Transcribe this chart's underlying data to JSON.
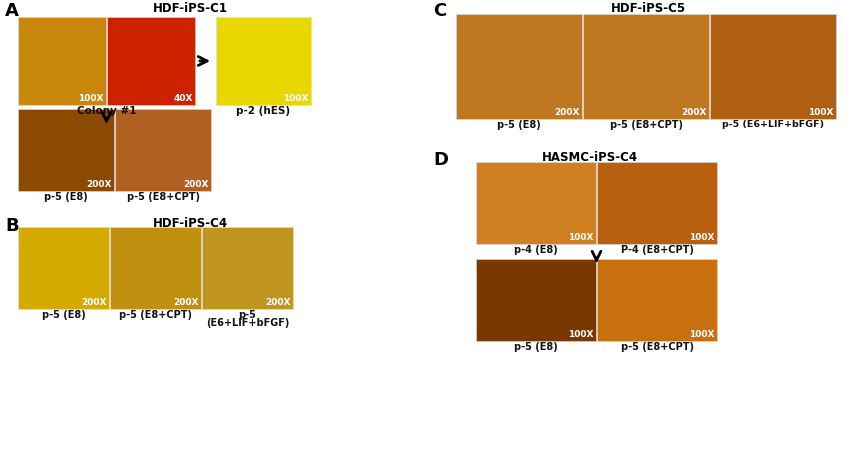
{
  "bg_color": "#ffffff",
  "panel_A": {
    "label": "A",
    "title": "HDF-iPS-C1",
    "row1": {
      "img1_color": "#c8860a",
      "img1_label": "100X",
      "img2_color": "#cc2200",
      "img2_label": "40X",
      "img3_color": "#e8d800",
      "img3_label": "100X",
      "img3_caption": "p-2 (hES)",
      "caption_left": "Colony #1"
    },
    "row2": {
      "img1_color": "#8b4a00",
      "img1_label": "200X",
      "img1_caption": "p-5 (E8)",
      "img2_color": "#b06020",
      "img2_label": "200X",
      "img2_caption": "p-5 (E8+CPT)"
    }
  },
  "panel_B": {
    "label": "B",
    "title": "HDF-iPS-C4",
    "img1_color": "#d4aa00",
    "img1_label": "200X",
    "img1_caption": "p-5 (E8)",
    "img2_color": "#c09010",
    "img2_label": "200X",
    "img2_caption": "p-5 (E8+CPT)",
    "img3_color": "#c09520",
    "img3_label": "200X",
    "img3_caption": "p-5\n(E6+LIF+bFGF)"
  },
  "panel_C": {
    "label": "C",
    "title": "HDF-iPS-C5",
    "img1_color": "#c07820",
    "img1_label": "200X",
    "img1_caption": "p-5 (E8)",
    "img2_color": "#c07820",
    "img2_label": "200X",
    "img2_caption": "p-5 (E8+CPT)",
    "img3_color": "#b06010",
    "img3_label": "100X",
    "img3_caption": "p-5 (E6+LIF+bFGF)"
  },
  "panel_D": {
    "label": "D",
    "title": "HASMC-iPS-C4",
    "row1": {
      "img1_color": "#d08020",
      "img1_label": "100X",
      "img1_caption": "p-4 (E8)",
      "img2_color": "#b86010",
      "img2_label": "100X",
      "img2_caption": "P-4 (E8+CPT)"
    },
    "row2": {
      "img1_color": "#7a3800",
      "img1_label": "100X",
      "img1_caption": "p-5 (E8)",
      "img2_color": "#c87010",
      "img2_label": "100X",
      "img2_caption": "p-5 (E8+CPT)"
    }
  }
}
